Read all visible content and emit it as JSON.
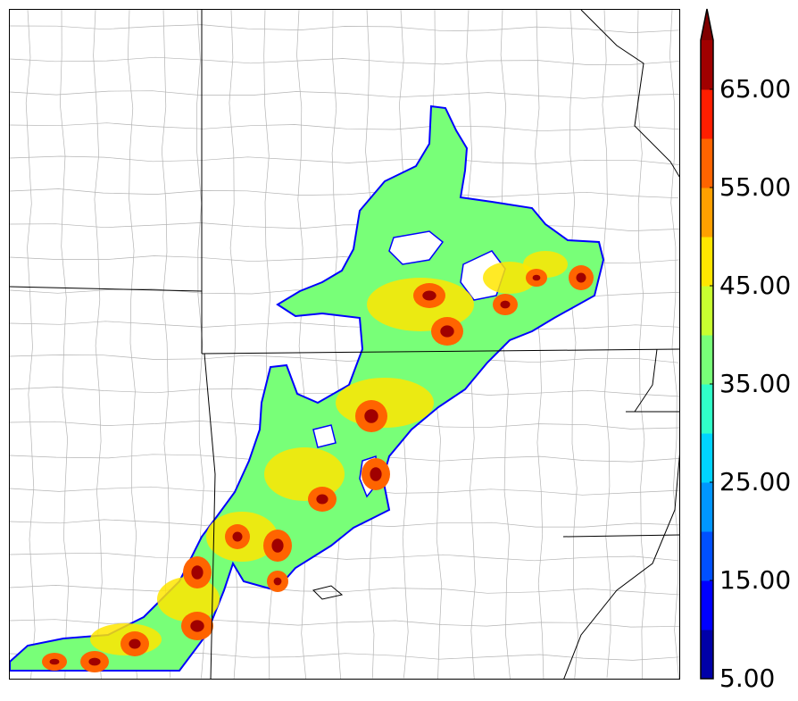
{
  "colorbar": {
    "colors": [
      "#0000a8",
      "#0000ff",
      "#0050ff",
      "#0096ff",
      "#00d4ff",
      "#30ffc8",
      "#78ff78",
      "#c8ff30",
      "#ffe600",
      "#ffa000",
      "#ff6400",
      "#ff1e00",
      "#a00000"
    ],
    "extend_color": "#800000",
    "levels": [
      5,
      10,
      15,
      20,
      25,
      30,
      35,
      40,
      45,
      50,
      55,
      60,
      65,
      70
    ],
    "tick_labels": [
      "5.00",
      "15.00",
      "25.00",
      "35.00",
      "45.00",
      "55.00",
      "65.00"
    ],
    "extend": "max",
    "orientation": "vertical"
  },
  "map": {
    "border_color": "#000000",
    "county_line_color": "#b4b4b4",
    "state_line_color": "#000000",
    "field_outline_color": "#0000ff",
    "field_description_colors": {
      "low": "#78ff78",
      "mid": "#ffe600",
      "high": "#ff6400",
      "max": "#a00000"
    }
  }
}
